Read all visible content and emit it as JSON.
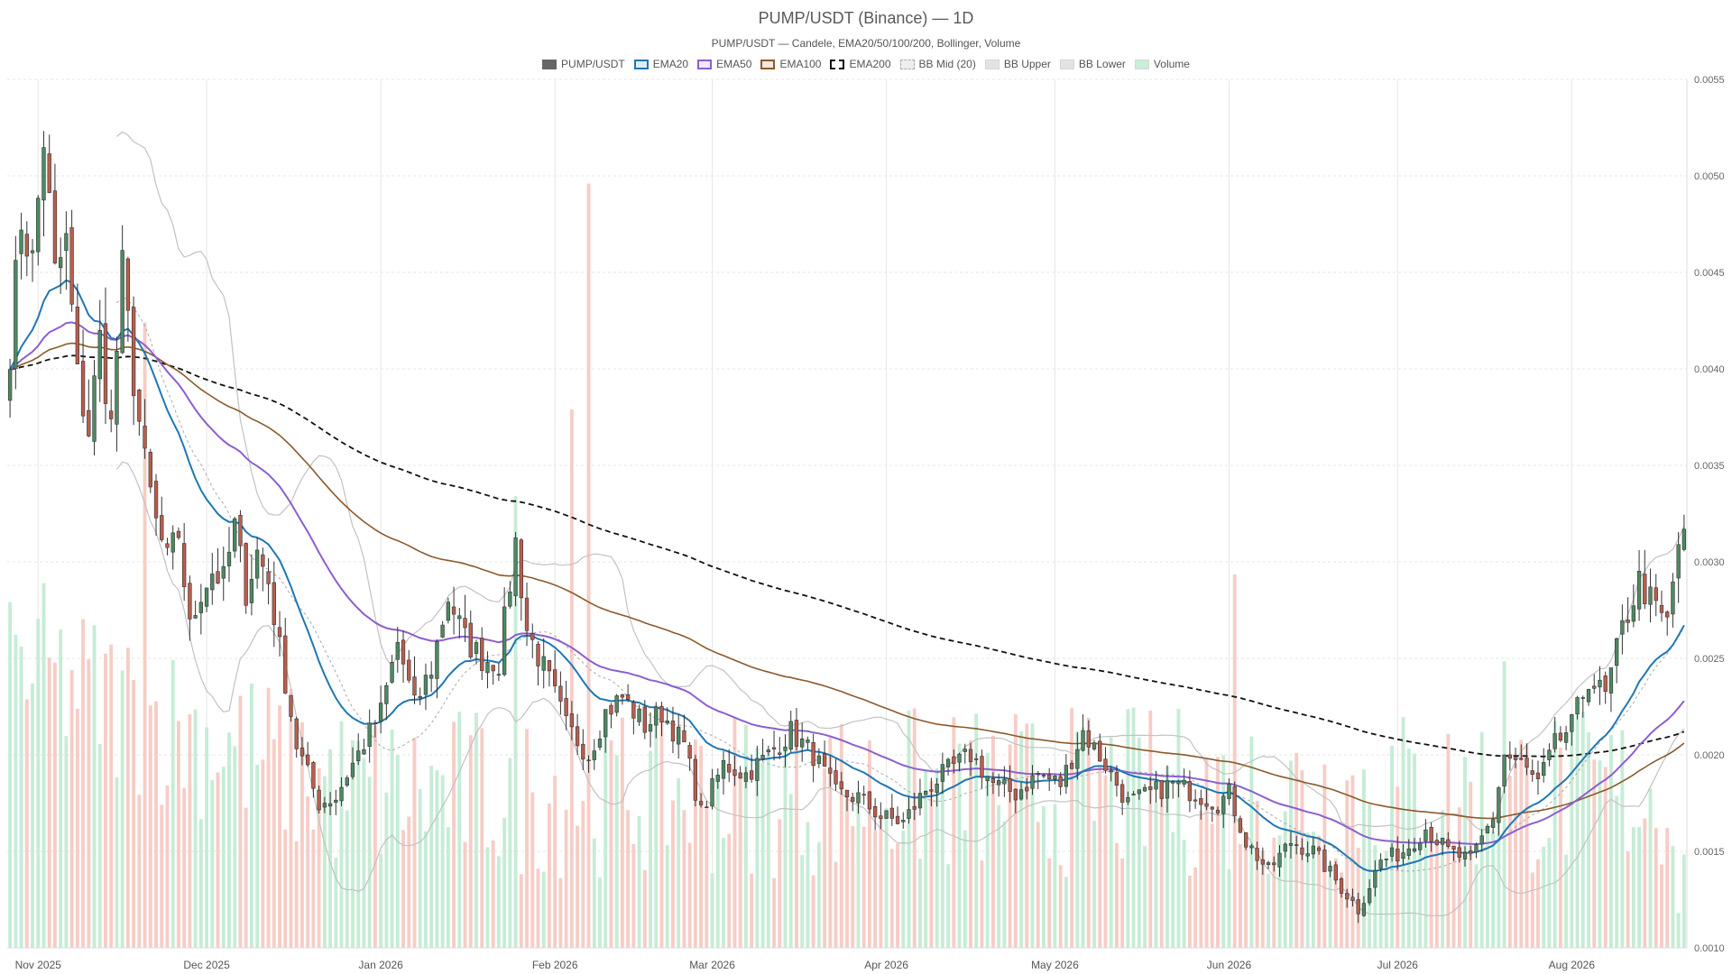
{
  "title": "PUMP/USDT (Binance) — 1D",
  "subtitle": "PUMP/USDT — Candele, EMA20/50/100/200, Bollinger, Volume",
  "legend": [
    {
      "key": "candles",
      "label": "PUMP/USDT",
      "color": "#666666",
      "style": "solid-fill"
    },
    {
      "key": "ema20",
      "label": "EMA20",
      "color": "#1f77b4",
      "style": "outline"
    },
    {
      "key": "ema50",
      "label": "EMA50",
      "color": "#8c5fd0",
      "style": "outline"
    },
    {
      "key": "ema100",
      "label": "EMA100",
      "color": "#8b5a2b",
      "style": "outline"
    },
    {
      "key": "ema200",
      "label": "EMA200",
      "color": "#111111",
      "style": "dashed"
    },
    {
      "key": "bbmid",
      "label": "BB Mid (20)",
      "color": "#b8b8b8",
      "style": "dotted"
    },
    {
      "key": "bbupper",
      "label": "BB Upper",
      "color": "#c8c8c8",
      "style": "light"
    },
    {
      "key": "bblower",
      "label": "BB Lower",
      "color": "#c8c8c8",
      "style": "light"
    },
    {
      "key": "volume",
      "label": "Volume",
      "color": "#c9efd9",
      "style": "light"
    }
  ],
  "colors": {
    "up": "#4c8a62",
    "down": "#b95e4e",
    "vol_up": "#c6ecd6",
    "vol_down": "#f6cdc6",
    "ema20": "#1f77b4",
    "ema50": "#8c5fd0",
    "ema100": "#8b5a2b",
    "ema200": "#111111",
    "bb": "#c2c2c2",
    "bbmid": "#a9a9a9",
    "grid": "#e6e6e6"
  },
  "chart_data": {
    "type": "candlestick",
    "start_date": "2025-10-27",
    "interval": "1D",
    "x_ticks": [
      {
        "label": "Nov 2025",
        "date": "2025-11-01"
      },
      {
        "label": "Dec 2025",
        "date": "2025-12-01"
      },
      {
        "label": "Jan 2026",
        "date": "2026-01-01"
      },
      {
        "label": "Feb 2026",
        "date": "2026-02-01"
      },
      {
        "label": "Mar 2026",
        "date": "2026-03-01"
      },
      {
        "label": "Apr 2026",
        "date": "2026-04-01"
      },
      {
        "label": "May 2026",
        "date": "2026-05-01"
      },
      {
        "label": "Jun 2026",
        "date": "2026-06-01"
      },
      {
        "label": "Jul 2026",
        "date": "2026-07-01"
      },
      {
        "label": "Aug 2026",
        "date": "2026-08-01"
      }
    ],
    "y_ticks": [
      "0.0010",
      "0.0015",
      "0.0020",
      "0.0025",
      "0.0030",
      "0.0035",
      "0.0040",
      "0.0045",
      "0.0050",
      "0.0055"
    ],
    "ylim": [
      0.001,
      0.0055
    ],
    "y_axis_side": "right",
    "grid": true,
    "legend_position": "top-center",
    "close_anchors": [
      [
        "2025-10-27",
        0.00412
      ],
      [
        "2025-10-29",
        0.00478
      ],
      [
        "2025-10-31",
        0.00455
      ],
      [
        "2025-11-02",
        0.0052
      ],
      [
        "2025-11-04",
        0.00448
      ],
      [
        "2025-11-06",
        0.00465
      ],
      [
        "2025-11-08",
        0.00395
      ],
      [
        "2025-11-10",
        0.00368
      ],
      [
        "2025-11-12",
        0.00415
      ],
      [
        "2025-11-14",
        0.0037
      ],
      [
        "2025-11-16",
        0.0045
      ],
      [
        "2025-11-18",
        0.00395
      ],
      [
        "2025-11-20",
        0.0035
      ],
      [
        "2025-11-22",
        0.0032
      ],
      [
        "2025-11-24",
        0.003
      ],
      [
        "2025-11-26",
        0.00315
      ],
      [
        "2025-11-28",
        0.00265
      ],
      [
        "2025-11-30",
        0.00285
      ],
      [
        "2025-12-02",
        0.00295
      ],
      [
        "2025-12-04",
        0.0029
      ],
      [
        "2025-12-06",
        0.00318
      ],
      [
        "2025-12-08",
        0.00285
      ],
      [
        "2025-12-10",
        0.00305
      ],
      [
        "2025-12-12",
        0.0029
      ],
      [
        "2025-12-14",
        0.00255
      ],
      [
        "2025-12-17",
        0.00205
      ],
      [
        "2025-12-19",
        0.0019
      ],
      [
        "2025-12-21",
        0.00175
      ],
      [
        "2025-12-24",
        0.00178
      ],
      [
        "2025-12-26",
        0.0019
      ],
      [
        "2026-01-01",
        0.00222
      ],
      [
        "2026-01-04",
        0.00258
      ],
      [
        "2026-01-07",
        0.00225
      ],
      [
        "2026-01-10",
        0.00245
      ],
      [
        "2026-01-13",
        0.00282
      ],
      [
        "2026-01-16",
        0.0026
      ],
      [
        "2026-01-19",
        0.0025
      ],
      [
        "2026-01-22",
        0.00248
      ],
      [
        "2026-01-25",
        0.0031
      ],
      [
        "2026-01-27",
        0.00265
      ],
      [
        "2026-01-31",
        0.00238
      ],
      [
        "2026-02-03",
        0.00215
      ],
      [
        "2026-02-07",
        0.002
      ],
      [
        "2026-02-10",
        0.00222
      ],
      [
        "2026-02-13",
        0.0023
      ],
      [
        "2026-02-17",
        0.00215
      ],
      [
        "2026-02-20",
        0.00222
      ],
      [
        "2026-02-24",
        0.00205
      ],
      [
        "2026-02-27",
        0.0017
      ],
      [
        "2026-03-03",
        0.00195
      ],
      [
        "2026-03-07",
        0.0019
      ],
      [
        "2026-03-11",
        0.002
      ],
      [
        "2026-03-15",
        0.00212
      ],
      [
        "2026-03-19",
        0.002
      ],
      [
        "2026-03-23",
        0.0018
      ],
      [
        "2026-03-27",
        0.00178
      ],
      [
        "2026-03-31",
        0.00168
      ],
      [
        "2026-04-04",
        0.00165
      ],
      [
        "2026-04-08",
        0.00182
      ],
      [
        "2026-04-12",
        0.00192
      ],
      [
        "2026-04-16",
        0.002
      ],
      [
        "2026-04-20",
        0.00185
      ],
      [
        "2026-04-24",
        0.0018
      ],
      [
        "2026-04-28",
        0.0019
      ],
      [
        "2026-05-02",
        0.00185
      ],
      [
        "2026-05-06",
        0.00212
      ],
      [
        "2026-05-10",
        0.00195
      ],
      [
        "2026-05-14",
        0.00175
      ],
      [
        "2026-05-18",
        0.0018
      ],
      [
        "2026-05-22",
        0.00185
      ],
      [
        "2026-05-26",
        0.0018
      ],
      [
        "2026-05-30",
        0.00175
      ],
      [
        "2026-06-01",
        0.0018
      ],
      [
        "2026-06-04",
        0.00155
      ],
      [
        "2026-06-08",
        0.0014
      ],
      [
        "2026-06-12",
        0.00155
      ],
      [
        "2026-06-16",
        0.0015
      ],
      [
        "2026-06-20",
        0.00135
      ],
      [
        "2026-06-24",
        0.0012
      ],
      [
        "2026-06-28",
        0.00145
      ],
      [
        "2026-07-02",
        0.0015
      ],
      [
        "2026-07-06",
        0.00162
      ],
      [
        "2026-07-10",
        0.0015
      ],
      [
        "2026-07-14",
        0.00145
      ],
      [
        "2026-07-18",
        0.00168
      ],
      [
        "2026-07-20",
        0.002
      ],
      [
        "2026-07-23",
        0.00195
      ],
      [
        "2026-07-26",
        0.00185
      ],
      [
        "2026-07-29",
        0.00205
      ],
      [
        "2026-08-01",
        0.00215
      ],
      [
        "2026-08-04",
        0.0024
      ],
      [
        "2026-08-07",
        0.0023
      ],
      [
        "2026-08-10",
        0.00265
      ],
      [
        "2026-08-13",
        0.0029
      ],
      [
        "2026-08-16",
        0.00275
      ],
      [
        "2026-08-18",
        0.00268
      ],
      [
        "2026-08-20",
        0.0031
      ]
    ],
    "volume_peaks": [
      [
        "2025-11-02",
        0.42
      ],
      [
        "2025-11-20",
        0.72
      ],
      [
        "2026-01-25",
        0.52
      ],
      [
        "2026-02-04",
        0.62
      ],
      [
        "2026-02-07",
        0.88
      ],
      [
        "2026-06-02",
        0.43
      ],
      [
        "2026-07-20",
        0.33
      ],
      [
        "2026-08-20",
        0.04
      ]
    ]
  }
}
